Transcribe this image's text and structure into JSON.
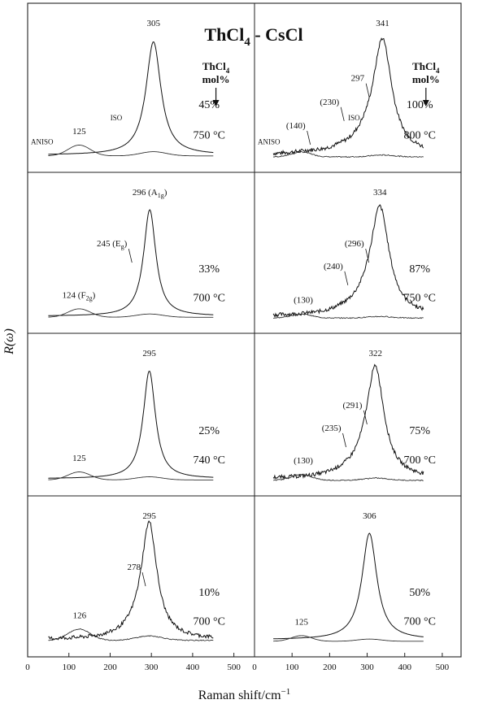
{
  "chart_data": {
    "type": "line",
    "title": "ThCl4 - CsCl",
    "title_main": "ThCl",
    "title_sub": "4",
    "title_rest": " - CsCl",
    "xlabel": "Raman shift/cm",
    "xlabel_sup": "−1",
    "ylabel": "R(ω)",
    "xlim": [
      0,
      550
    ],
    "xticks": [
      0,
      100,
      200,
      300,
      400,
      500
    ],
    "series_names": [
      "ISO",
      "ANISO"
    ],
    "legend_header": {
      "line1": "ThCl",
      "sub": "4",
      "line2": "mol%"
    },
    "panels": [
      {
        "id": "p1",
        "col": 0,
        "row": 0,
        "composition": "45%",
        "temperature": "750 °C",
        "peak": 305,
        "iso_height": 0.85,
        "width": 22,
        "aniso_height": 0.18,
        "shoulders": [],
        "labels": [
          {
            "text": "305",
            "x": 305,
            "at": "iso-peak"
          },
          {
            "text": "125",
            "x": 125,
            "at": "aniso"
          },
          {
            "text": "ISO",
            "x": 215,
            "at": "iso-side"
          },
          {
            "text": "ANISO",
            "x": 5,
            "at": "aniso-side"
          }
        ],
        "show_legend_header": true
      },
      {
        "id": "p2",
        "col": 1,
        "row": 0,
        "composition": "100%",
        "temperature": "800 °C",
        "peak": 341,
        "iso_height": 0.84,
        "width": 30,
        "aniso_height": 0.08,
        "shoulders": [
          {
            "x": 297,
            "h": 0.42
          },
          {
            "x": 230,
            "h": 0.1
          },
          {
            "x": 140,
            "h": 0.06
          }
        ],
        "labels": [
          {
            "text": "341",
            "x": 341,
            "at": "iso-peak"
          },
          {
            "text": "297",
            "x": 297,
            "at": "shoulder"
          },
          {
            "text": "(230)",
            "x": 230,
            "at": "shoulder"
          },
          {
            "text": "(140)",
            "x": 140,
            "at": "shoulder"
          },
          {
            "text": "ISO",
            "x": 265,
            "at": "iso-side"
          },
          {
            "text": "ANISO",
            "x": 5,
            "at": "aniso-side"
          }
        ],
        "show_legend_header": true
      },
      {
        "id": "p3",
        "col": 0,
        "row": 1,
        "composition": "33%",
        "temperature": "700 °C",
        "peak": 296,
        "iso_height": 0.85,
        "width": 18,
        "aniso_height": 0.15,
        "shoulders": [],
        "labels": [
          {
            "text": "296 (A",
            "sub": "1g",
            "tail": ")",
            "x": 296,
            "at": "iso-peak"
          },
          {
            "text": "245 (E",
            "sub": "g",
            "tail": ")",
            "x": 245,
            "at": "shoulder"
          },
          {
            "text": "124 (F",
            "sub": "2g",
            "tail": ")",
            "x": 124,
            "at": "aniso"
          }
        ],
        "show_legend_header": false
      },
      {
        "id": "p4",
        "col": 1,
        "row": 1,
        "composition": "87%",
        "temperature": "750 °C",
        "peak": 334,
        "iso_height": 0.84,
        "width": 30,
        "aniso_height": 0.07,
        "shoulders": [
          {
            "x": 296,
            "h": 0.38
          },
          {
            "x": 240,
            "h": 0.1
          }
        ],
        "labels": [
          {
            "text": "334",
            "x": 334,
            "at": "iso-peak"
          },
          {
            "text": "(296)",
            "x": 296,
            "at": "shoulder"
          },
          {
            "text": "(240)",
            "x": 240,
            "at": "shoulder"
          },
          {
            "text": "(130)",
            "x": 130,
            "at": "aniso"
          }
        ],
        "show_legend_header": false
      },
      {
        "id": "p5",
        "col": 0,
        "row": 2,
        "composition": "25%",
        "temperature": "740 °C",
        "peak": 295,
        "iso_height": 0.85,
        "width": 18,
        "aniso_height": 0.14,
        "shoulders": [],
        "labels": [
          {
            "text": "295",
            "x": 295,
            "at": "iso-peak"
          },
          {
            "text": "125",
            "x": 125,
            "at": "aniso"
          }
        ],
        "show_legend_header": false
      },
      {
        "id": "p6",
        "col": 1,
        "row": 2,
        "composition": "75%",
        "temperature": "700 °C",
        "peak": 322,
        "iso_height": 0.84,
        "width": 28,
        "aniso_height": 0.1,
        "shoulders": [
          {
            "x": 291,
            "h": 0.4
          },
          {
            "x": 235,
            "h": 0.1
          }
        ],
        "labels": [
          {
            "text": "322",
            "x": 322,
            "at": "iso-peak"
          },
          {
            "text": "(291)",
            "x": 291,
            "at": "shoulder"
          },
          {
            "text": "(235)",
            "x": 235,
            "at": "shoulder"
          },
          {
            "text": "(130)",
            "x": 130,
            "at": "aniso"
          }
        ],
        "show_legend_header": false
      },
      {
        "id": "p7",
        "col": 0,
        "row": 3,
        "composition": "10%",
        "temperature": "700 °C",
        "peak": 295,
        "iso_height": 0.85,
        "width": 22,
        "aniso_height": 0.2,
        "shoulders": [
          {
            "x": 278,
            "h": 0.6
          }
        ],
        "labels": [
          {
            "text": "295",
            "x": 295,
            "at": "iso-peak"
          },
          {
            "text": "278",
            "x": 278,
            "at": "shoulder"
          },
          {
            "text": "126",
            "x": 126,
            "at": "aniso"
          }
        ],
        "show_legend_header": false
      },
      {
        "id": "p8",
        "col": 1,
        "row": 3,
        "composition": "50%",
        "temperature": "700 °C",
        "peak": 306,
        "iso_height": 0.85,
        "width": 24,
        "aniso_height": 0.1,
        "shoulders": [],
        "labels": [
          {
            "text": "306",
            "x": 306,
            "at": "iso-peak"
          },
          {
            "text": "125",
            "x": 125,
            "at": "aniso"
          }
        ],
        "show_legend_header": false
      }
    ]
  }
}
